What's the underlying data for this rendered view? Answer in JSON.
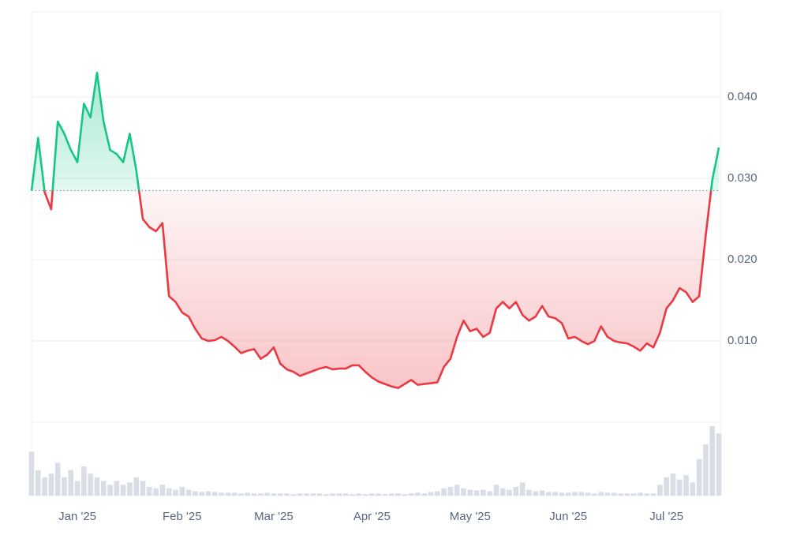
{
  "chart_data": {
    "type": "line",
    "categories": [
      null,
      null,
      null,
      null,
      null,
      null,
      null,
      "Jan '25",
      null,
      null,
      null,
      null,
      null,
      null,
      null,
      null,
      null,
      null,
      null,
      null,
      null,
      null,
      null,
      "Feb '25",
      null,
      null,
      null,
      null,
      null,
      null,
      null,
      null,
      null,
      null,
      null,
      null,
      null,
      "Mar '25",
      null,
      null,
      null,
      null,
      null,
      null,
      null,
      null,
      null,
      null,
      null,
      null,
      null,
      null,
      "Apr '25",
      null,
      null,
      null,
      null,
      null,
      null,
      null,
      null,
      null,
      null,
      null,
      null,
      null,
      null,
      "May '25",
      null,
      null,
      null,
      null,
      null,
      null,
      null,
      null,
      null,
      null,
      null,
      null,
      null,
      null,
      "Jun '25",
      null,
      null,
      null,
      null,
      null,
      null,
      null,
      null,
      null,
      null,
      null,
      null,
      null,
      null,
      "Jul '25",
      null,
      null,
      null,
      null,
      null,
      null,
      null,
      null
    ],
    "values": [
      0.0285,
      0.035,
      0.0283,
      0.0262,
      0.037,
      0.0355,
      0.0335,
      0.032,
      0.0392,
      0.0375,
      0.043,
      0.037,
      0.0335,
      0.033,
      0.032,
      0.0355,
      0.031,
      0.025,
      0.024,
      0.0235,
      0.0245,
      0.0155,
      0.0148,
      0.0135,
      0.013,
      0.0115,
      0.0103,
      0.01,
      0.0101,
      0.0105,
      0.01,
      0.0093,
      0.0085,
      0.0088,
      0.009,
      0.0078,
      0.0083,
      0.0092,
      0.0072,
      0.0065,
      0.0062,
      0.0057,
      0.006,
      0.0063,
      0.0066,
      0.0068,
      0.0065,
      0.0066,
      0.0066,
      0.007,
      0.007,
      0.0062,
      0.0055,
      0.005,
      0.0047,
      0.0044,
      0.0042,
      0.0047,
      0.0052,
      0.0046,
      0.0047,
      0.0048,
      0.0049,
      0.0068,
      0.0078,
      0.0105,
      0.0125,
      0.0112,
      0.0115,
      0.0105,
      0.011,
      0.014,
      0.0148,
      0.014,
      0.0148,
      0.0132,
      0.0125,
      0.013,
      0.0143,
      0.013,
      0.0128,
      0.0122,
      0.0103,
      0.0105,
      0.01,
      0.0096,
      0.01,
      0.0118,
      0.0105,
      0.01,
      0.0098,
      0.0097,
      0.0093,
      0.0088,
      0.0097,
      0.0092,
      0.011,
      0.014,
      0.015,
      0.0165,
      0.016,
      0.0148,
      0.0155,
      0.023,
      0.0298,
      0.0338
    ],
    "volume": [
      60,
      35,
      25,
      30,
      45,
      25,
      35,
      20,
      40,
      30,
      25,
      20,
      15,
      20,
      15,
      18,
      25,
      20,
      12,
      10,
      15,
      10,
      8,
      12,
      8,
      6,
      5,
      6,
      5,
      4,
      4,
      4,
      3,
      4,
      3,
      3,
      4,
      3,
      3,
      3,
      2,
      3,
      3,
      3,
      3,
      2,
      3,
      3,
      3,
      2,
      3,
      2,
      3,
      3,
      2,
      3,
      3,
      2,
      3,
      4,
      3,
      5,
      6,
      10,
      12,
      15,
      10,
      8,
      7,
      8,
      6,
      15,
      10,
      8,
      12,
      18,
      8,
      6,
      7,
      5,
      5,
      4,
      4,
      5,
      5,
      4,
      3,
      5,
      4,
      4,
      3,
      3,
      3,
      4,
      3,
      3,
      15,
      25,
      30,
      22,
      28,
      18,
      50,
      70,
      95,
      85
    ],
    "baseline": 0.0285,
    "colors": {
      "up": "#16c784",
      "down": "#ea3943",
      "volume": "#d9dee6"
    },
    "ylim": [
      0,
      0.0505
    ],
    "yticks": [
      {
        "value": 0.01,
        "label": "0.010"
      },
      {
        "value": 0.02,
        "label": "0.020"
      },
      {
        "value": 0.03,
        "label": "0.030"
      },
      {
        "value": 0.04,
        "label": "0.040"
      }
    ],
    "grid": true
  }
}
